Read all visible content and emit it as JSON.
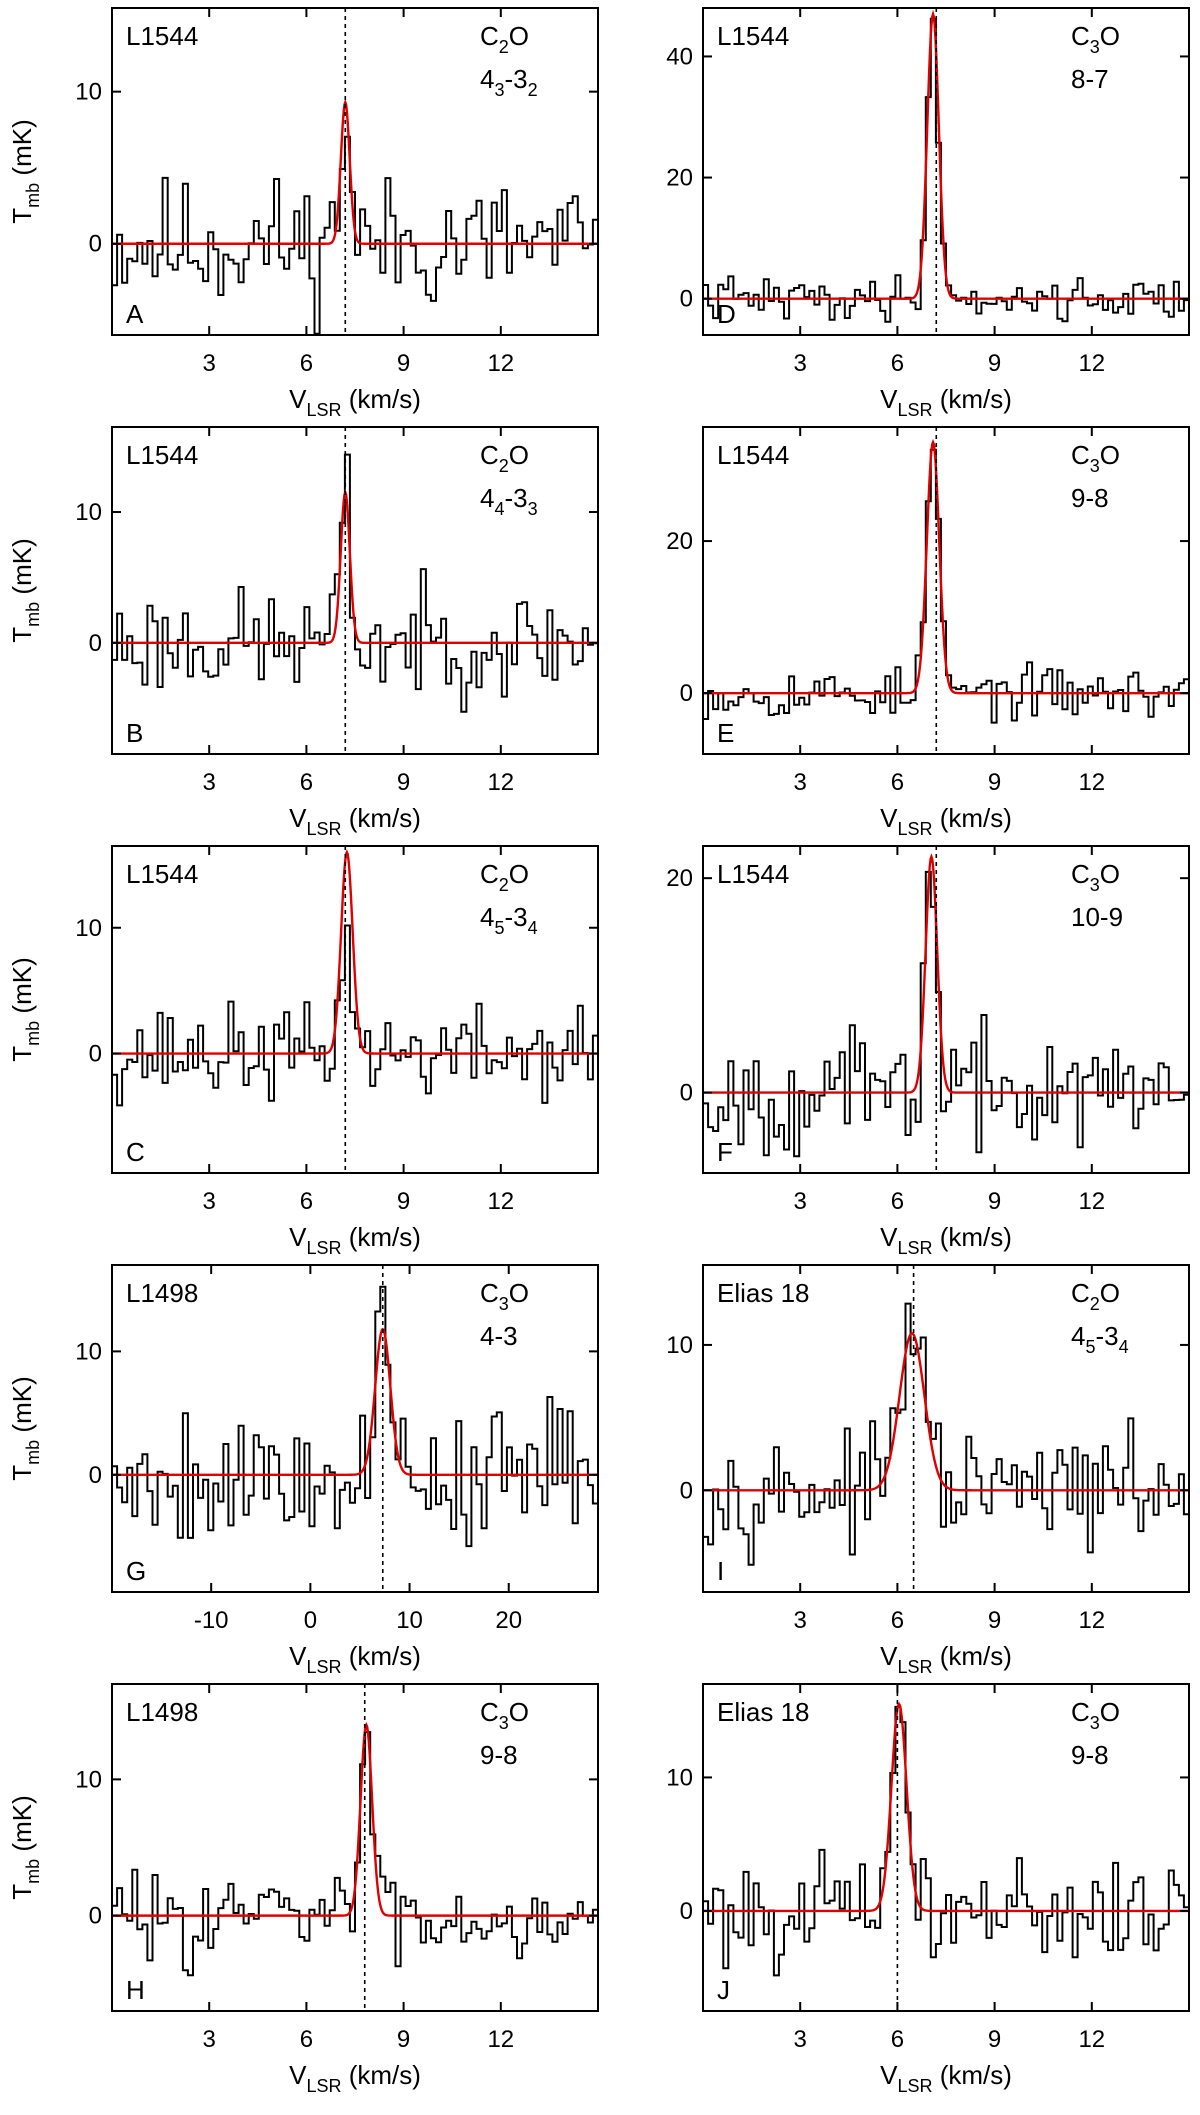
{
  "figure": {
    "ylabel_main": "T",
    "ylabel_sub": "mb",
    "ylabel_unit": "(mK)",
    "xlabel_main": "V",
    "xlabel_sub": "LSR",
    "xlabel_unit": "(km/s)"
  },
  "chart_data": [
    {
      "panel": "A",
      "type": "line",
      "source": "L1544",
      "molecule": "C",
      "molecule_sub": "2",
      "molecule_rest": "O",
      "transition": [
        {
          "t": "4"
        },
        {
          "t": "3",
          "sub": true
        },
        {
          "t": "-3"
        },
        {
          "t": "2",
          "sub": true
        }
      ],
      "x_range": [
        0,
        15
      ],
      "y_range": [
        -6,
        15.5
      ],
      "x_ticks": [
        3,
        6,
        9,
        12
      ],
      "x_tick_labels": [
        "3",
        "6",
        "9",
        "12"
      ],
      "y_ticks": [
        0,
        10
      ],
      "y_tick_labels": [
        "0",
        "10"
      ],
      "vlsr": 7.2,
      "fit": {
        "amplitude": 9.3,
        "center": 7.2,
        "fwhm": 0.32
      },
      "noise": 3.2,
      "line_peak": 8.5,
      "line_width": 0.35,
      "seed": 11,
      "xlabel": "V_LSR (km/s)",
      "ylabel": "T_mb (mK)"
    },
    {
      "panel": "B",
      "type": "line",
      "source": "L1544",
      "molecule": "C",
      "molecule_sub": "2",
      "molecule_rest": "O",
      "transition": [
        {
          "t": "4"
        },
        {
          "t": "4",
          "sub": true
        },
        {
          "t": "-3"
        },
        {
          "t": "3",
          "sub": true
        }
      ],
      "x_range": [
        0,
        15
      ],
      "y_range": [
        -8.5,
        16.5
      ],
      "x_ticks": [
        3,
        6,
        9,
        12
      ],
      "x_tick_labels": [
        "3",
        "6",
        "9",
        "12"
      ],
      "y_ticks": [
        0,
        10
      ],
      "y_tick_labels": [
        "0",
        "10"
      ],
      "vlsr": 7.2,
      "fit": {
        "amplitude": 11.5,
        "center": 7.2,
        "fwhm": 0.33
      },
      "noise": 3.0,
      "line_peak": 11.8,
      "line_width": 0.35,
      "seed": 23,
      "xlabel": "V_LSR (km/s)",
      "ylabel": "T_mb (mK)"
    },
    {
      "panel": "C",
      "type": "line",
      "source": "L1544",
      "molecule": "C",
      "molecule_sub": "2",
      "molecule_rest": "O",
      "transition": [
        {
          "t": "4"
        },
        {
          "t": "5",
          "sub": true
        },
        {
          "t": "-3"
        },
        {
          "t": "4",
          "sub": true
        }
      ],
      "x_range": [
        0,
        15
      ],
      "y_range": [
        -9.5,
        16.5
      ],
      "x_ticks": [
        3,
        6,
        9,
        12
      ],
      "x_tick_labels": [
        "3",
        "6",
        "9",
        "12"
      ],
      "y_ticks": [
        0,
        10
      ],
      "y_tick_labels": [
        "0",
        "10"
      ],
      "vlsr": 7.2,
      "fit": {
        "amplitude": 16.0,
        "center": 7.25,
        "fwhm": 0.42
      },
      "noise": 2.7,
      "line_peak": 11.5,
      "line_width": 0.35,
      "seed": 37,
      "xlabel": "V_LSR (km/s)",
      "ylabel": "T_mb (mK)"
    },
    {
      "panel": "D",
      "type": "line",
      "source": "L1544",
      "molecule": "C",
      "molecule_sub": "3",
      "molecule_rest": "O",
      "transition": [
        {
          "t": "8-7"
        }
      ],
      "x_range": [
        0,
        15
      ],
      "y_range": [
        -6,
        48
      ],
      "x_ticks": [
        3,
        6,
        9,
        12
      ],
      "x_tick_labels": [
        "3",
        "6",
        "9",
        "12"
      ],
      "y_ticks": [
        0,
        20,
        40
      ],
      "y_tick_labels": [
        "0",
        "20",
        "40"
      ],
      "vlsr": 7.2,
      "fit": {
        "amplitude": 47.0,
        "center": 7.1,
        "fwhm": 0.42
      },
      "noise": 2.6,
      "line_peak": 45.0,
      "line_width": 0.42,
      "seed": 41,
      "xlabel": "V_LSR (km/s)",
      "ylabel": "T_mb (mK)"
    },
    {
      "panel": "E",
      "type": "line",
      "source": "L1544",
      "molecule": "C",
      "molecule_sub": "3",
      "molecule_rest": "O",
      "transition": [
        {
          "t": "9-8"
        }
      ],
      "x_range": [
        0,
        15
      ],
      "y_range": [
        -8,
        35
      ],
      "x_ticks": [
        3,
        6,
        9,
        12
      ],
      "x_tick_labels": [
        "3",
        "6",
        "9",
        "12"
      ],
      "y_ticks": [
        0,
        20
      ],
      "y_tick_labels": [
        "0",
        "20"
      ],
      "vlsr": 7.2,
      "fit": {
        "amplitude": 33.0,
        "center": 7.1,
        "fwhm": 0.45
      },
      "noise": 2.4,
      "line_peak": 33.0,
      "line_width": 0.45,
      "seed": 53,
      "xlabel": "V_LSR (km/s)",
      "ylabel": "T_mb (mK)"
    },
    {
      "panel": "F",
      "type": "line",
      "source": "L1544",
      "molecule": "C",
      "molecule_sub": "3",
      "molecule_rest": "O",
      "transition": [
        {
          "t": "10-9"
        }
      ],
      "x_range": [
        0,
        15
      ],
      "y_range": [
        -7.5,
        23
      ],
      "x_ticks": [
        3,
        6,
        9,
        12
      ],
      "x_tick_labels": [
        "3",
        "6",
        "9",
        "12"
      ],
      "y_ticks": [
        0,
        20
      ],
      "y_tick_labels": [
        "0",
        "20"
      ],
      "vlsr": 7.2,
      "fit": {
        "amplitude": 22.0,
        "center": 7.05,
        "fwhm": 0.42
      },
      "noise": 4.0,
      "line_peak": 21.5,
      "line_width": 0.42,
      "seed": 67,
      "xlabel": "V_LSR (km/s)",
      "ylabel": "T_mb (mK)"
    },
    {
      "panel": "G",
      "type": "line",
      "source": "L1498",
      "molecule": "C",
      "molecule_sub": "3",
      "molecule_rest": "O",
      "transition": [
        {
          "t": "4-3"
        }
      ],
      "x_range": [
        -20,
        29
      ],
      "y_range": [
        -9.5,
        17
      ],
      "x_ticks": [
        -10,
        0,
        10,
        20
      ],
      "x_tick_labels": [
        "-10",
        "0",
        "10",
        "20"
      ],
      "y_ticks": [
        0,
        10
      ],
      "y_tick_labels": [
        "0",
        "10"
      ],
      "vlsr": 7.3,
      "fit": {
        "amplitude": 11.8,
        "center": 7.3,
        "fwhm": 1.8
      },
      "noise": 4.2,
      "line_peak": 12.0,
      "line_width": 1.8,
      "seed": 79,
      "xlabel": "V_LSR (km/s)",
      "ylabel": "T_mb (mK)"
    },
    {
      "panel": "H",
      "type": "line",
      "source": "L1498",
      "molecule": "C",
      "molecule_sub": "3",
      "molecule_rest": "O",
      "transition": [
        {
          "t": "9-8"
        }
      ],
      "x_range": [
        0,
        15
      ],
      "y_range": [
        -7,
        17
      ],
      "x_ticks": [
        3,
        6,
        9,
        12
      ],
      "x_tick_labels": [
        "3",
        "6",
        "9",
        "12"
      ],
      "y_ticks": [
        0,
        10
      ],
      "y_tick_labels": [
        "0",
        "10"
      ],
      "vlsr": 7.8,
      "fit": {
        "amplitude": 14.0,
        "center": 7.85,
        "fwhm": 0.42
      },
      "noise": 2.4,
      "line_peak": 14.5,
      "line_width": 0.42,
      "seed": 83,
      "xlabel": "V_LSR (km/s)",
      "ylabel": "T_mb (mK)"
    },
    {
      "panel": "I",
      "type": "line",
      "source": "Elias 18",
      "molecule": "C",
      "molecule_sub": "2",
      "molecule_rest": "O",
      "transition": [
        {
          "t": "4"
        },
        {
          "t": "5",
          "sub": true
        },
        {
          "t": "-3"
        },
        {
          "t": "4",
          "sub": true
        }
      ],
      "x_range": [
        0,
        15
      ],
      "y_range": [
        -7,
        15.5
      ],
      "x_ticks": [
        3,
        6,
        9,
        12
      ],
      "x_tick_labels": [
        "3",
        "6",
        "9",
        "12"
      ],
      "y_ticks": [
        0,
        10
      ],
      "y_tick_labels": [
        "0",
        "10"
      ],
      "vlsr": 6.5,
      "fit": {
        "amplitude": 10.8,
        "center": 6.45,
        "fwhm": 0.9
      },
      "noise": 2.6,
      "line_peak": 11.0,
      "line_width": 0.9,
      "seed": 97,
      "xlabel": "V_LSR (km/s)",
      "ylabel": "T_mb (mK)"
    },
    {
      "panel": "J",
      "type": "line",
      "source": "Elias 18",
      "molecule": "C",
      "molecule_sub": "3",
      "molecule_rest": "O",
      "transition": [
        {
          "t": "9-8"
        }
      ],
      "x_range": [
        0,
        15
      ],
      "y_range": [
        -7.5,
        17
      ],
      "x_ticks": [
        3,
        6,
        9,
        12
      ],
      "x_tick_labels": [
        "3",
        "6",
        "9",
        "12"
      ],
      "y_ticks": [
        0,
        10
      ],
      "y_tick_labels": [
        "0",
        "10"
      ],
      "vlsr": 6.0,
      "fit": {
        "amplitude": 15.5,
        "center": 6.05,
        "fwhm": 0.55
      },
      "noise": 2.8,
      "line_peak": 16.0,
      "line_width": 0.55,
      "seed": 101,
      "xlabel": "V_LSR (km/s)",
      "ylabel": "T_mb (mK)"
    }
  ]
}
